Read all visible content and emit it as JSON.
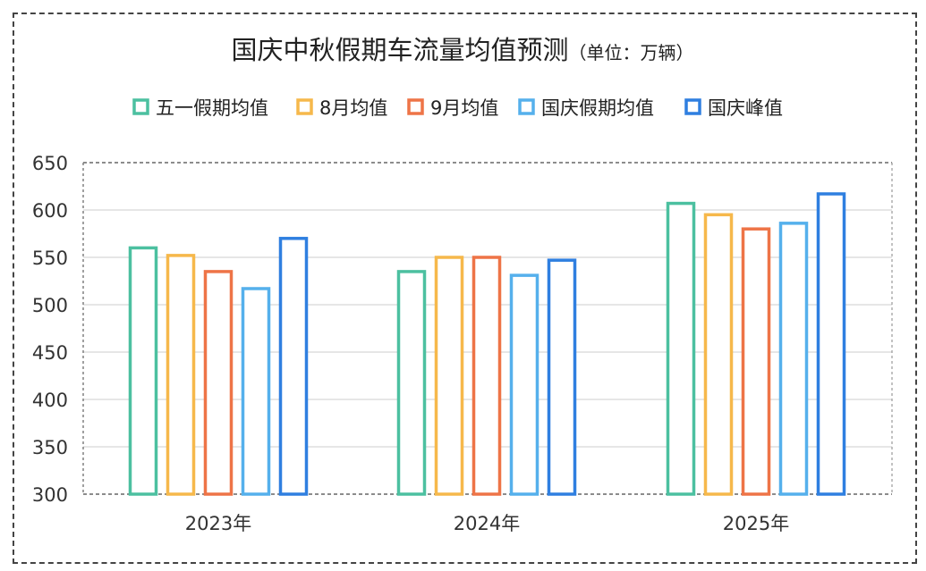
{
  "chart_data": {
    "type": "bar",
    "title": "国庆中秋假期车流量均值预测",
    "subtitle": "（单位：万辆）",
    "xlabel": "",
    "ylabel": "",
    "categories": [
      "2023年",
      "2024年",
      "2025年"
    ],
    "series": [
      {
        "name": "五一假期均值",
        "color": "#4cc0a0",
        "values": [
          560,
          535,
          607
        ]
      },
      {
        "name": "8月均值",
        "color": "#f6b84b",
        "values": [
          552,
          550,
          595
        ]
      },
      {
        "name": "9月均值",
        "color": "#ee7447",
        "values": [
          535,
          550,
          580
        ]
      },
      {
        "name": "国庆假期均值",
        "color": "#55b0ec",
        "values": [
          517,
          531,
          586
        ]
      },
      {
        "name": "国庆峰值",
        "color": "#2f7fe0",
        "values": [
          570,
          547,
          617
        ]
      }
    ],
    "ylim": [
      300,
      650
    ],
    "yticks": [
      "300",
      "350",
      "400",
      "450",
      "500",
      "550",
      "600",
      "650"
    ],
    "grid": true,
    "legend_position": "top"
  }
}
